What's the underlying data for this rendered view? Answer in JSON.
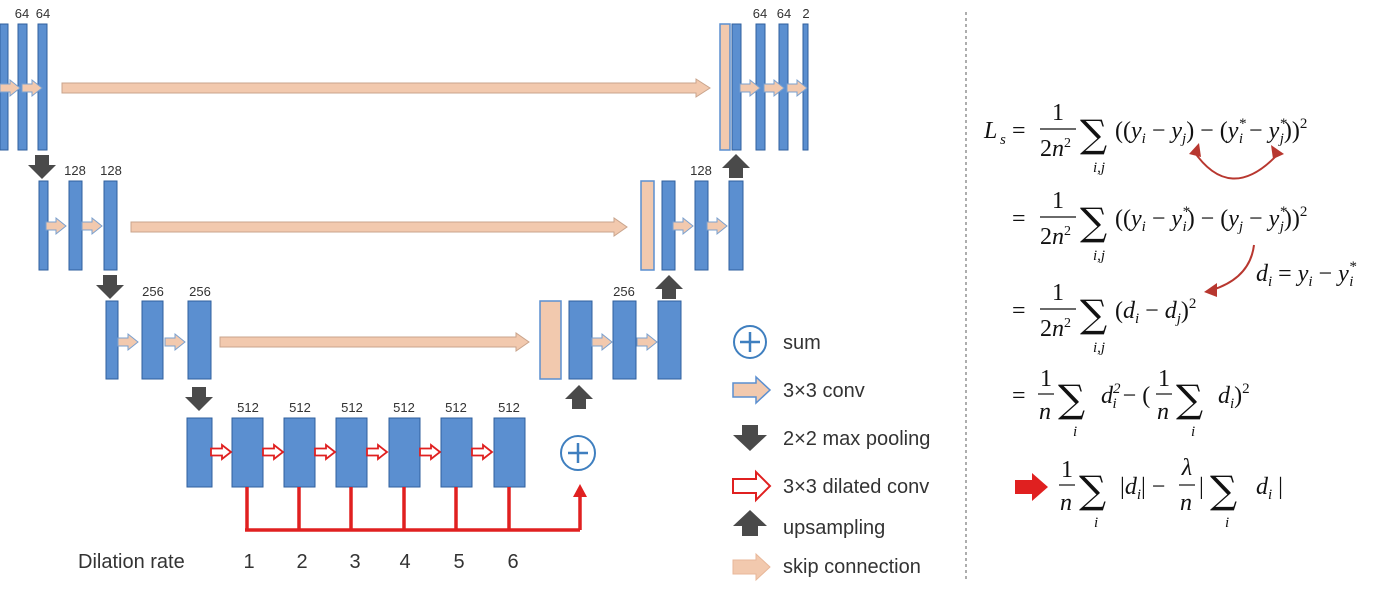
{
  "colors": {
    "block": "#5b8fd0",
    "block_stroke": "#2f5f9e",
    "skip": "#f2c9ae",
    "pool": "#4a4a4a",
    "dilated": "#e02020",
    "sum": "#3f7fbf"
  },
  "channels": {
    "level1_left": [
      "64",
      "64"
    ],
    "level1_right": [
      "64",
      "64",
      "2"
    ],
    "level2_left": [
      "128",
      "128"
    ],
    "level2_right": [
      "128"
    ],
    "level3_left": [
      "256",
      "256"
    ],
    "level3_right": [
      "256"
    ],
    "bottom": [
      "512",
      "512",
      "512",
      "512",
      "512",
      "512"
    ]
  },
  "dilation": {
    "label": "Dilation rate",
    "rates": [
      "1",
      "2",
      "3",
      "4",
      "5",
      "6"
    ]
  },
  "legend": [
    {
      "icon": "sum-icon",
      "label": "sum"
    },
    {
      "icon": "conv-arrow-icon",
      "label": "3×3 conv"
    },
    {
      "icon": "max-pooling-arrow-icon",
      "label": "2×2 max pooling"
    },
    {
      "icon": "dilated-conv-arrow-icon",
      "label": "3×3 dilated conv"
    },
    {
      "icon": "upsampling-arrow-icon",
      "label": "upsampling"
    },
    {
      "icon": "skip-connection-arrow-icon",
      "label": "skip connection"
    }
  ],
  "equations": {
    "line1": "L_s = 1/(2n²) Σ_{i,j} ((y_i − y_j) − (y_i* − y_j*))²",
    "line2": "= 1/(2n²) Σ_{i,j} ((y_i − y_i*) − (y_j − y_j*))²",
    "definition": "d_i = y_i − y_i*",
    "line3": "= 1/(2n²) Σ_{i,j} (d_i − d_j)²",
    "line4": "= 1/n Σ_i d_i² − (1/n Σ_i d_i)²",
    "line5": "1/n Σ_i |d_i| − λ/n |Σ_i d_i|"
  }
}
